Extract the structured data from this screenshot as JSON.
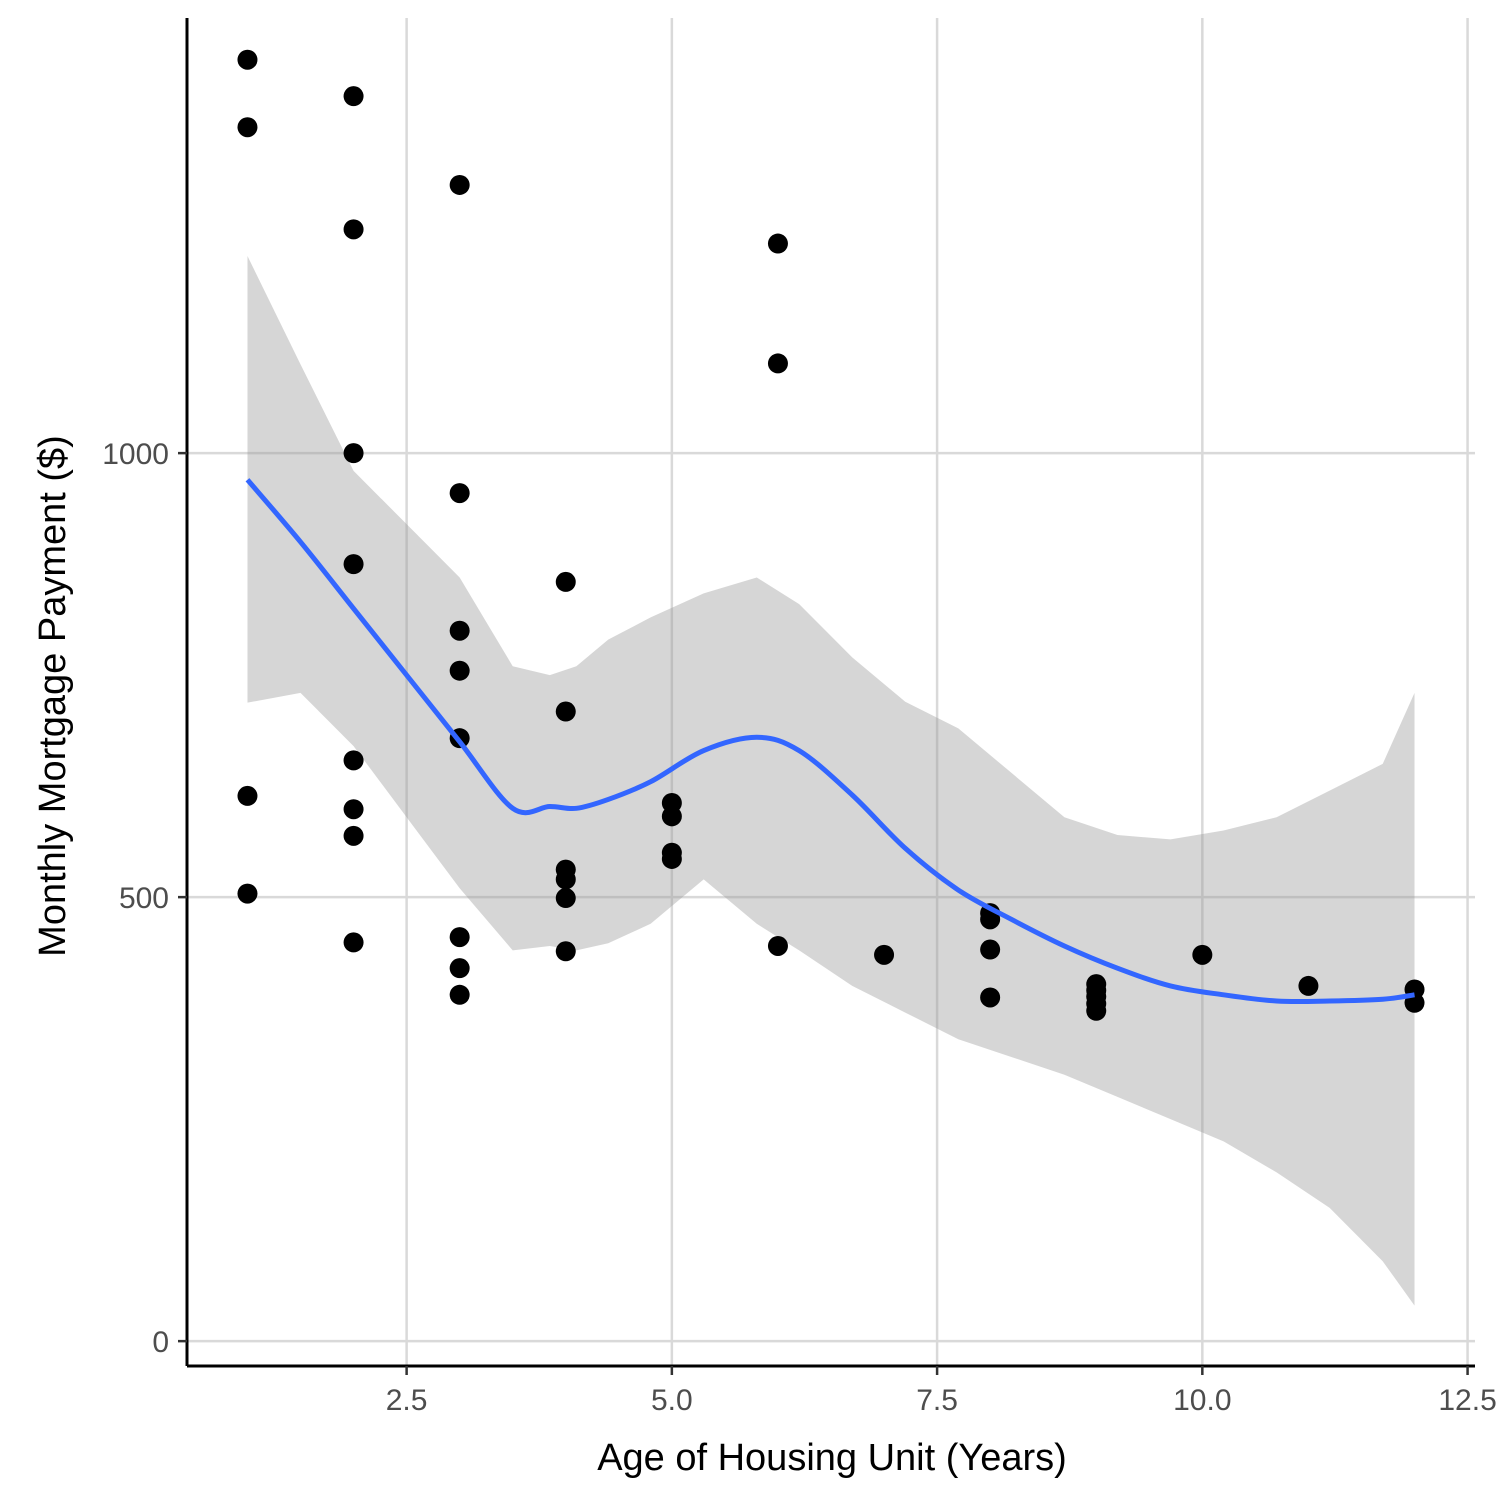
{
  "chart_data": {
    "type": "scatter",
    "title": "",
    "xlabel": "Age of Housing Unit (Years)",
    "ylabel": "Monthly Mortgage Payment ($)",
    "xlim": [
      0.43,
      12.57
    ],
    "ylim": [
      -28,
      1490
    ],
    "x_ticks": [
      2.5,
      5.0,
      7.5,
      10.0,
      12.5
    ],
    "x_tick_labels": [
      "2.5",
      "5.0",
      "7.5",
      "10.0",
      "12.5"
    ],
    "y_ticks": [
      0,
      500,
      1000
    ],
    "y_tick_labels": [
      "0",
      "500",
      "1000"
    ],
    "grid": "major",
    "legend": "none",
    "colors": {
      "points": "#000000",
      "smooth_line": "#3366ff",
      "ribbon": "#999999",
      "grid": "#d9d9d9",
      "axis": "#000000"
    },
    "series": [
      {
        "type": "scatter",
        "points": [
          [
            1,
            1443
          ],
          [
            1,
            1367
          ],
          [
            1,
            614
          ],
          [
            1,
            504
          ],
          [
            2,
            1402
          ],
          [
            2,
            1252
          ],
          [
            2,
            1000
          ],
          [
            2,
            875
          ],
          [
            2,
            654
          ],
          [
            2,
            599
          ],
          [
            2,
            569
          ],
          [
            2,
            449
          ],
          [
            3,
            1302
          ],
          [
            3,
            955
          ],
          [
            3,
            800
          ],
          [
            3,
            755
          ],
          [
            3,
            679
          ],
          [
            3,
            455
          ],
          [
            3,
            420
          ],
          [
            3,
            390
          ],
          [
            4,
            855
          ],
          [
            4,
            709
          ],
          [
            4,
            531
          ],
          [
            4,
            520
          ],
          [
            4,
            499
          ],
          [
            4,
            439
          ],
          [
            5,
            606
          ],
          [
            5,
            591
          ],
          [
            5,
            550
          ],
          [
            5,
            543
          ],
          [
            6,
            1236
          ],
          [
            6,
            1101
          ],
          [
            6,
            445
          ],
          [
            7,
            435
          ],
          [
            8,
            482
          ],
          [
            8,
            475
          ],
          [
            8,
            441
          ],
          [
            8,
            387
          ],
          [
            9,
            402
          ],
          [
            9,
            395
          ],
          [
            9,
            388
          ],
          [
            9,
            380
          ],
          [
            9,
            372
          ],
          [
            10,
            435
          ],
          [
            11,
            400
          ],
          [
            12,
            396
          ],
          [
            12,
            381
          ]
        ]
      },
      {
        "type": "line",
        "method": "loess",
        "x": [
          1,
          1.5,
          2,
          2.5,
          3,
          3.5,
          3.85,
          4.1,
          4.4,
          4.8,
          5.3,
          5.8,
          6.2,
          6.7,
          7.2,
          7.7,
          8.2,
          8.7,
          9.2,
          9.7,
          10.2,
          10.7,
          11.2,
          11.7,
          12
        ],
        "y": [
          970,
          900,
          825,
          750,
          675,
          600,
          602,
          600,
          610,
          630,
          665,
          680,
          665,
          615,
          555,
          508,
          475,
          445,
          420,
          400,
          390,
          383,
          383,
          385,
          390
        ],
        "ci_lower": [
          719,
          730,
          670,
          590,
          510,
          440,
          445,
          440,
          448,
          470,
          520,
          470,
          440,
          400,
          370,
          340,
          320,
          300,
          275,
          250,
          225,
          190,
          150,
          90,
          40
        ],
        "ci_upper": [
          1222,
          1100,
          980,
          920,
          860,
          760,
          750,
          760,
          790,
          815,
          842,
          860,
          830,
          770,
          720,
          690,
          640,
          590,
          570,
          565,
          575,
          590,
          620,
          650,
          730
        ]
      }
    ]
  }
}
